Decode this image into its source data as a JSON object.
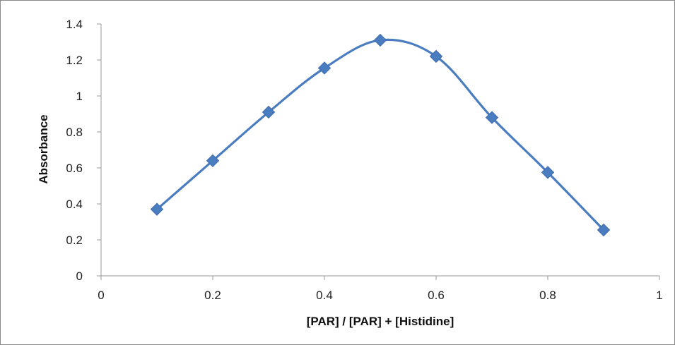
{
  "chart_data": {
    "type": "line",
    "title": "",
    "xlabel": "[PAR] / [PAR] + [Histidine]",
    "ylabel": "Absorbance",
    "xlim": [
      0,
      1
    ],
    "ylim": [
      0,
      1.4
    ],
    "x_ticks": [
      "0",
      "0.2",
      "0.4",
      "0.6",
      "0.8",
      "1"
    ],
    "y_ticks": [
      "0",
      "0.2",
      "0.4",
      "0.6",
      "0.8",
      "1",
      "1.2",
      "1.4"
    ],
    "grid": false,
    "legend": "none",
    "smoothed": true,
    "marker": "diamond",
    "series": [
      {
        "color": "#4a7cc0",
        "x": [
          0.1,
          0.2,
          0.3,
          0.4,
          0.5,
          0.6,
          0.7,
          0.8,
          0.9
        ],
        "y": [
          0.37,
          0.64,
          0.91,
          1.155,
          1.31,
          1.22,
          0.88,
          0.575,
          0.255
        ]
      }
    ]
  }
}
